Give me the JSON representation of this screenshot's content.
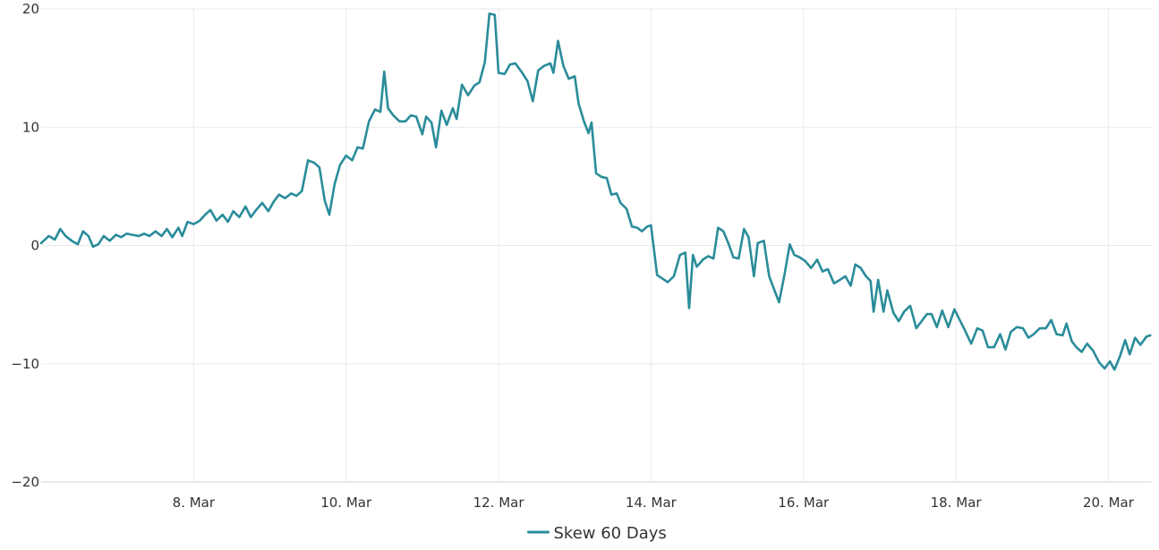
{
  "chart_data": {
    "type": "line",
    "title": "",
    "xlabel": "",
    "ylabel": "",
    "x_unit": "days (March)",
    "xlim": [
      6.0,
      20.57
    ],
    "ylim": [
      -20,
      20
    ],
    "y_ticks": [
      -20,
      -10,
      0,
      10,
      20
    ],
    "y_tick_labels": [
      "−20",
      "−10",
      "0",
      "10",
      "20"
    ],
    "x_ticks": [
      8,
      10,
      12,
      14,
      16,
      18,
      20
    ],
    "x_tick_labels": [
      "8. Mar",
      "10. Mar",
      "12. Mar",
      "14. Mar",
      "16. Mar",
      "18. Mar",
      "20. Mar"
    ],
    "grid": true,
    "legend_position": "bottom-center",
    "colors": {
      "series": "#2a8c9a",
      "grid": "#e6e9ef",
      "axis": "#cfd6e3",
      "text": "#333333"
    },
    "series": [
      {
        "name": "Skew 60 Days",
        "points": [
          [
            6.0,
            0.2
          ],
          [
            6.1,
            0.8
          ],
          [
            6.18,
            0.5
          ],
          [
            6.25,
            1.4
          ],
          [
            6.32,
            0.8
          ],
          [
            6.4,
            0.4
          ],
          [
            6.48,
            0.1
          ],
          [
            6.55,
            1.2
          ],
          [
            6.62,
            0.8
          ],
          [
            6.68,
            -0.1
          ],
          [
            6.75,
            0.1
          ],
          [
            6.82,
            0.8
          ],
          [
            6.9,
            0.4
          ],
          [
            6.98,
            0.9
          ],
          [
            7.05,
            0.7
          ],
          [
            7.12,
            1.0
          ],
          [
            7.2,
            0.9
          ],
          [
            7.28,
            0.8
          ],
          [
            7.35,
            1.0
          ],
          [
            7.42,
            0.8
          ],
          [
            7.5,
            1.2
          ],
          [
            7.58,
            0.8
          ],
          [
            7.65,
            1.4
          ],
          [
            7.72,
            0.7
          ],
          [
            7.8,
            1.5
          ],
          [
            7.85,
            0.8
          ],
          [
            7.92,
            2.0
          ],
          [
            8.0,
            1.8
          ],
          [
            8.08,
            2.1
          ],
          [
            8.15,
            2.6
          ],
          [
            8.22,
            3.0
          ],
          [
            8.3,
            2.1
          ],
          [
            8.38,
            2.6
          ],
          [
            8.45,
            2.0
          ],
          [
            8.52,
            2.9
          ],
          [
            8.6,
            2.4
          ],
          [
            8.68,
            3.3
          ],
          [
            8.75,
            2.4
          ],
          [
            8.82,
            3.0
          ],
          [
            8.9,
            3.6
          ],
          [
            8.98,
            2.9
          ],
          [
            9.05,
            3.7
          ],
          [
            9.12,
            4.3
          ],
          [
            9.2,
            4.0
          ],
          [
            9.28,
            4.4
          ],
          [
            9.35,
            4.2
          ],
          [
            9.42,
            4.6
          ],
          [
            9.5,
            7.2
          ],
          [
            9.58,
            7.0
          ],
          [
            9.65,
            6.6
          ],
          [
            9.72,
            3.8
          ],
          [
            9.78,
            2.6
          ],
          [
            9.85,
            5.2
          ],
          [
            9.92,
            6.8
          ],
          [
            10.0,
            7.6
          ],
          [
            10.08,
            7.2
          ],
          [
            10.15,
            8.3
          ],
          [
            10.22,
            8.2
          ],
          [
            10.3,
            10.5
          ],
          [
            10.38,
            11.5
          ],
          [
            10.45,
            11.3
          ],
          [
            10.5,
            14.7
          ],
          [
            10.55,
            11.6
          ],
          [
            10.62,
            11.0
          ],
          [
            10.7,
            10.5
          ],
          [
            10.78,
            10.5
          ],
          [
            10.85,
            11.0
          ],
          [
            10.92,
            10.9
          ],
          [
            11.0,
            9.4
          ],
          [
            11.05,
            10.9
          ],
          [
            11.12,
            10.4
          ],
          [
            11.18,
            8.3
          ],
          [
            11.25,
            11.4
          ],
          [
            11.32,
            10.2
          ],
          [
            11.4,
            11.6
          ],
          [
            11.45,
            10.7
          ],
          [
            11.52,
            13.6
          ],
          [
            11.6,
            12.7
          ],
          [
            11.68,
            13.5
          ],
          [
            11.75,
            13.8
          ],
          [
            11.82,
            15.5
          ],
          [
            11.88,
            19.6
          ],
          [
            11.95,
            19.5
          ],
          [
            12.0,
            14.6
          ],
          [
            12.08,
            14.5
          ],
          [
            12.15,
            15.3
          ],
          [
            12.22,
            15.4
          ],
          [
            12.3,
            14.7
          ],
          [
            12.38,
            13.9
          ],
          [
            12.45,
            12.2
          ],
          [
            12.52,
            14.8
          ],
          [
            12.6,
            15.2
          ],
          [
            12.68,
            15.4
          ],
          [
            12.72,
            14.6
          ],
          [
            12.78,
            17.3
          ],
          [
            12.85,
            15.2
          ],
          [
            12.92,
            14.1
          ],
          [
            13.0,
            14.3
          ],
          [
            13.05,
            12.0
          ],
          [
            13.12,
            10.5
          ],
          [
            13.18,
            9.5
          ],
          [
            13.22,
            10.4
          ],
          [
            13.28,
            6.1
          ],
          [
            13.35,
            5.8
          ],
          [
            13.42,
            5.7
          ],
          [
            13.48,
            4.3
          ],
          [
            13.55,
            4.4
          ],
          [
            13.6,
            3.6
          ],
          [
            13.68,
            3.1
          ],
          [
            13.75,
            1.6
          ],
          [
            13.82,
            1.5
          ],
          [
            13.88,
            1.2
          ],
          [
            13.95,
            1.6
          ],
          [
            14.0,
            1.7
          ],
          [
            14.08,
            -2.5
          ],
          [
            14.15,
            -2.8
          ],
          [
            14.22,
            -3.1
          ],
          [
            14.3,
            -2.6
          ],
          [
            14.38,
            -0.8
          ],
          [
            14.45,
            -0.6
          ],
          [
            14.5,
            -5.3
          ],
          [
            14.55,
            -0.8
          ],
          [
            14.6,
            -1.8
          ],
          [
            14.68,
            -1.2
          ],
          [
            14.75,
            -0.9
          ],
          [
            14.82,
            -1.1
          ],
          [
            14.88,
            1.5
          ],
          [
            14.95,
            1.2
          ],
          [
            15.02,
            0.1
          ],
          [
            15.08,
            -1.0
          ],
          [
            15.15,
            -1.1
          ],
          [
            15.22,
            1.4
          ],
          [
            15.28,
            0.7
          ],
          [
            15.35,
            -2.6
          ],
          [
            15.4,
            0.2
          ],
          [
            15.48,
            0.4
          ],
          [
            15.55,
            -2.6
          ],
          [
            15.62,
            -3.8
          ],
          [
            15.68,
            -4.8
          ],
          [
            15.75,
            -2.5
          ],
          [
            15.82,
            0.1
          ],
          [
            15.88,
            -0.8
          ],
          [
            15.95,
            -1.0
          ],
          [
            16.02,
            -1.3
          ],
          [
            16.1,
            -1.9
          ],
          [
            16.18,
            -1.2
          ],
          [
            16.25,
            -2.2
          ],
          [
            16.32,
            -2.0
          ],
          [
            16.4,
            -3.2
          ],
          [
            16.48,
            -2.9
          ],
          [
            16.55,
            -2.6
          ],
          [
            16.62,
            -3.4
          ],
          [
            16.68,
            -1.6
          ],
          [
            16.75,
            -1.9
          ],
          [
            16.82,
            -2.6
          ],
          [
            16.88,
            -3.0
          ],
          [
            16.92,
            -5.6
          ],
          [
            16.98,
            -2.9
          ],
          [
            17.05,
            -5.6
          ],
          [
            17.1,
            -3.8
          ],
          [
            17.18,
            -5.7
          ],
          [
            17.25,
            -6.4
          ],
          [
            17.32,
            -5.6
          ],
          [
            17.4,
            -5.1
          ],
          [
            17.48,
            -7.0
          ],
          [
            17.55,
            -6.4
          ],
          [
            17.62,
            -5.8
          ],
          [
            17.68,
            -5.8
          ],
          [
            17.75,
            -6.9
          ],
          [
            17.82,
            -5.5
          ],
          [
            17.9,
            -6.9
          ],
          [
            17.98,
            -5.4
          ],
          [
            18.05,
            -6.3
          ],
          [
            18.12,
            -7.2
          ],
          [
            18.2,
            -8.3
          ],
          [
            18.28,
            -7.0
          ],
          [
            18.35,
            -7.2
          ],
          [
            18.42,
            -8.6
          ],
          [
            18.5,
            -8.6
          ],
          [
            18.58,
            -7.5
          ],
          [
            18.65,
            -8.8
          ],
          [
            18.72,
            -7.3
          ],
          [
            18.8,
            -6.9
          ],
          [
            18.88,
            -7.0
          ],
          [
            18.95,
            -7.8
          ],
          [
            19.02,
            -7.5
          ],
          [
            19.1,
            -7.0
          ],
          [
            19.18,
            -7.0
          ],
          [
            19.25,
            -6.3
          ],
          [
            19.32,
            -7.5
          ],
          [
            19.4,
            -7.6
          ],
          [
            19.45,
            -6.6
          ],
          [
            19.52,
            -8.1
          ],
          [
            19.58,
            -8.6
          ],
          [
            19.65,
            -9.0
          ],
          [
            19.72,
            -8.3
          ],
          [
            19.8,
            -8.9
          ],
          [
            19.88,
            -9.9
          ],
          [
            19.95,
            -10.4
          ],
          [
            20.02,
            -9.8
          ],
          [
            20.08,
            -10.5
          ],
          [
            20.15,
            -9.4
          ],
          [
            20.22,
            -8.0
          ],
          [
            20.28,
            -9.2
          ],
          [
            20.35,
            -7.8
          ],
          [
            20.42,
            -8.4
          ],
          [
            20.5,
            -7.7
          ],
          [
            20.55,
            -7.6
          ]
        ]
      }
    ]
  }
}
